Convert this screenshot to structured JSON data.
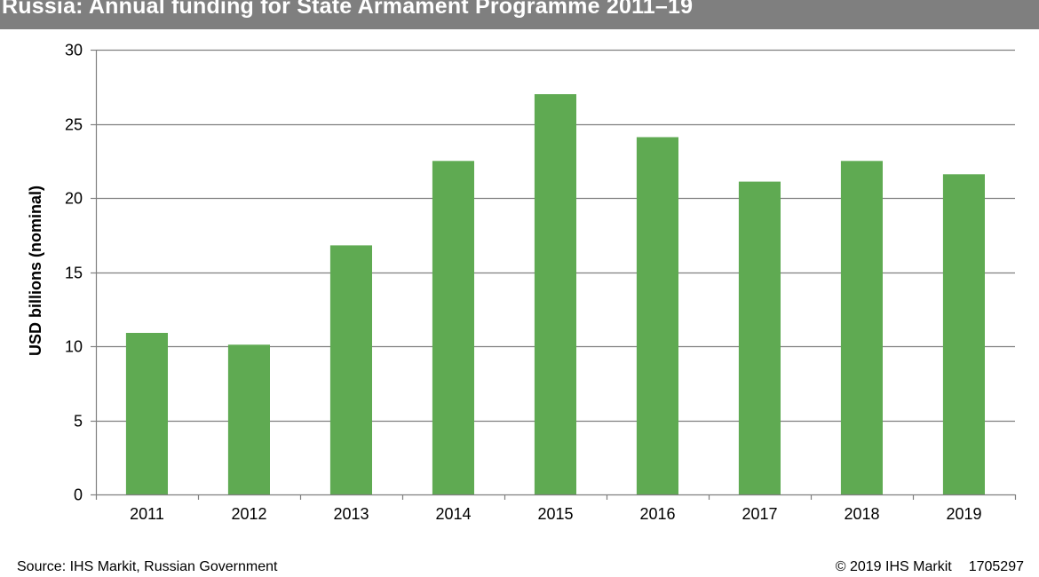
{
  "chart_data": {
    "type": "bar",
    "title": "Russia: Annual funding for State Armament Programme 2011–19",
    "xlabel": "",
    "ylabel": "USD billions (nominal)",
    "categories": [
      "2011",
      "2012",
      "2013",
      "2014",
      "2015",
      "2016",
      "2017",
      "2018",
      "2019"
    ],
    "values": [
      10.9,
      10.1,
      16.8,
      22.5,
      27.0,
      24.1,
      21.1,
      22.5,
      21.6
    ],
    "ylim": [
      0,
      30
    ],
    "yticks": [
      0,
      5,
      10,
      15,
      20,
      25,
      30
    ],
    "grid": true,
    "legend": "none",
    "bar_color": "#5faa52"
  },
  "footer": {
    "source": "Source: IHS Markit, Russian Government",
    "copyright": "© 2019 IHS Markit",
    "code": "1705297"
  }
}
